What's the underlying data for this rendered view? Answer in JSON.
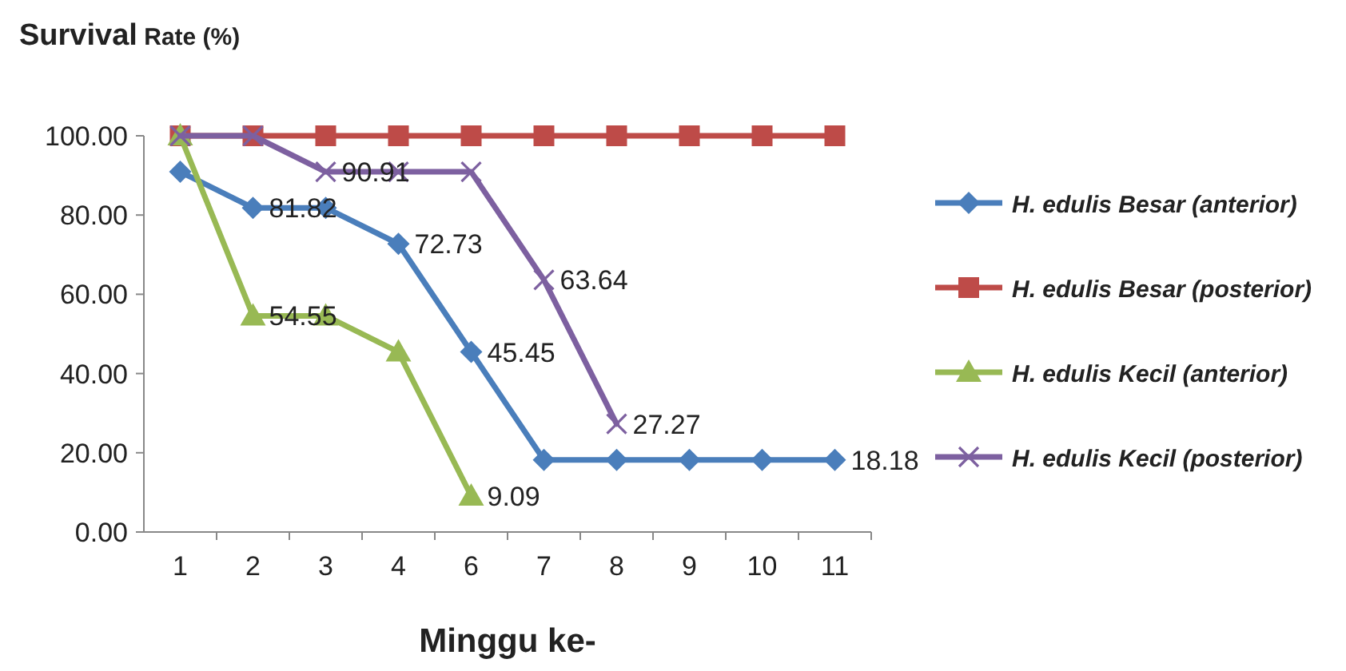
{
  "chart_data": {
    "type": "line",
    "title": "Survival Rate (%)",
    "xlabel": "Minggu ke-",
    "categories": [
      "1",
      "2",
      "3",
      "4",
      "6",
      "7",
      "8",
      "9",
      "10",
      "11"
    ],
    "ylim": [
      0,
      100
    ],
    "yticks": [
      {
        "value": 0,
        "label": "0.00"
      },
      {
        "value": 20,
        "label": "20.00"
      },
      {
        "value": 40,
        "label": "40.00"
      },
      {
        "value": 60,
        "label": "60.00"
      },
      {
        "value": 80,
        "label": "80.00"
      },
      {
        "value": 100,
        "label": "100.00"
      }
    ],
    "grid": false,
    "legend": "right",
    "series": [
      {
        "name": "H. edulis Besar (anterior)",
        "color": "#4a7ebb",
        "marker": "diamond",
        "values": [
          90.91,
          81.82,
          81.82,
          72.73,
          45.45,
          18.18,
          18.18,
          18.18,
          18.18,
          18.18
        ],
        "value_labels": [
          null,
          "81.82",
          null,
          "72.73",
          "45.45",
          null,
          null,
          null,
          null,
          "18.18"
        ]
      },
      {
        "name": "H. edulis Besar (posterior)",
        "color": "#be4b48",
        "marker": "square",
        "values": [
          100,
          100,
          100,
          100,
          100,
          100,
          100,
          100,
          100,
          100
        ]
      },
      {
        "name": "H. edulis Kecil (anterior)",
        "color": "#98b954",
        "marker": "triangle",
        "values": [
          100,
          54.55,
          54.55,
          45.45,
          9.09,
          null,
          null,
          null,
          null,
          null
        ],
        "value_labels": [
          null,
          "54.55",
          null,
          null,
          "9.09",
          null,
          null,
          null,
          null,
          null
        ]
      },
      {
        "name": "H. edulis Kecil (posterior)",
        "color": "#7d60a0",
        "marker": "cross",
        "values": [
          100,
          100,
          90.91,
          90.91,
          90.91,
          63.64,
          27.27,
          null,
          null,
          null
        ],
        "value_labels": [
          null,
          null,
          "90.91",
          null,
          null,
          "63.64",
          "27.27",
          null,
          null,
          null
        ]
      }
    ]
  }
}
